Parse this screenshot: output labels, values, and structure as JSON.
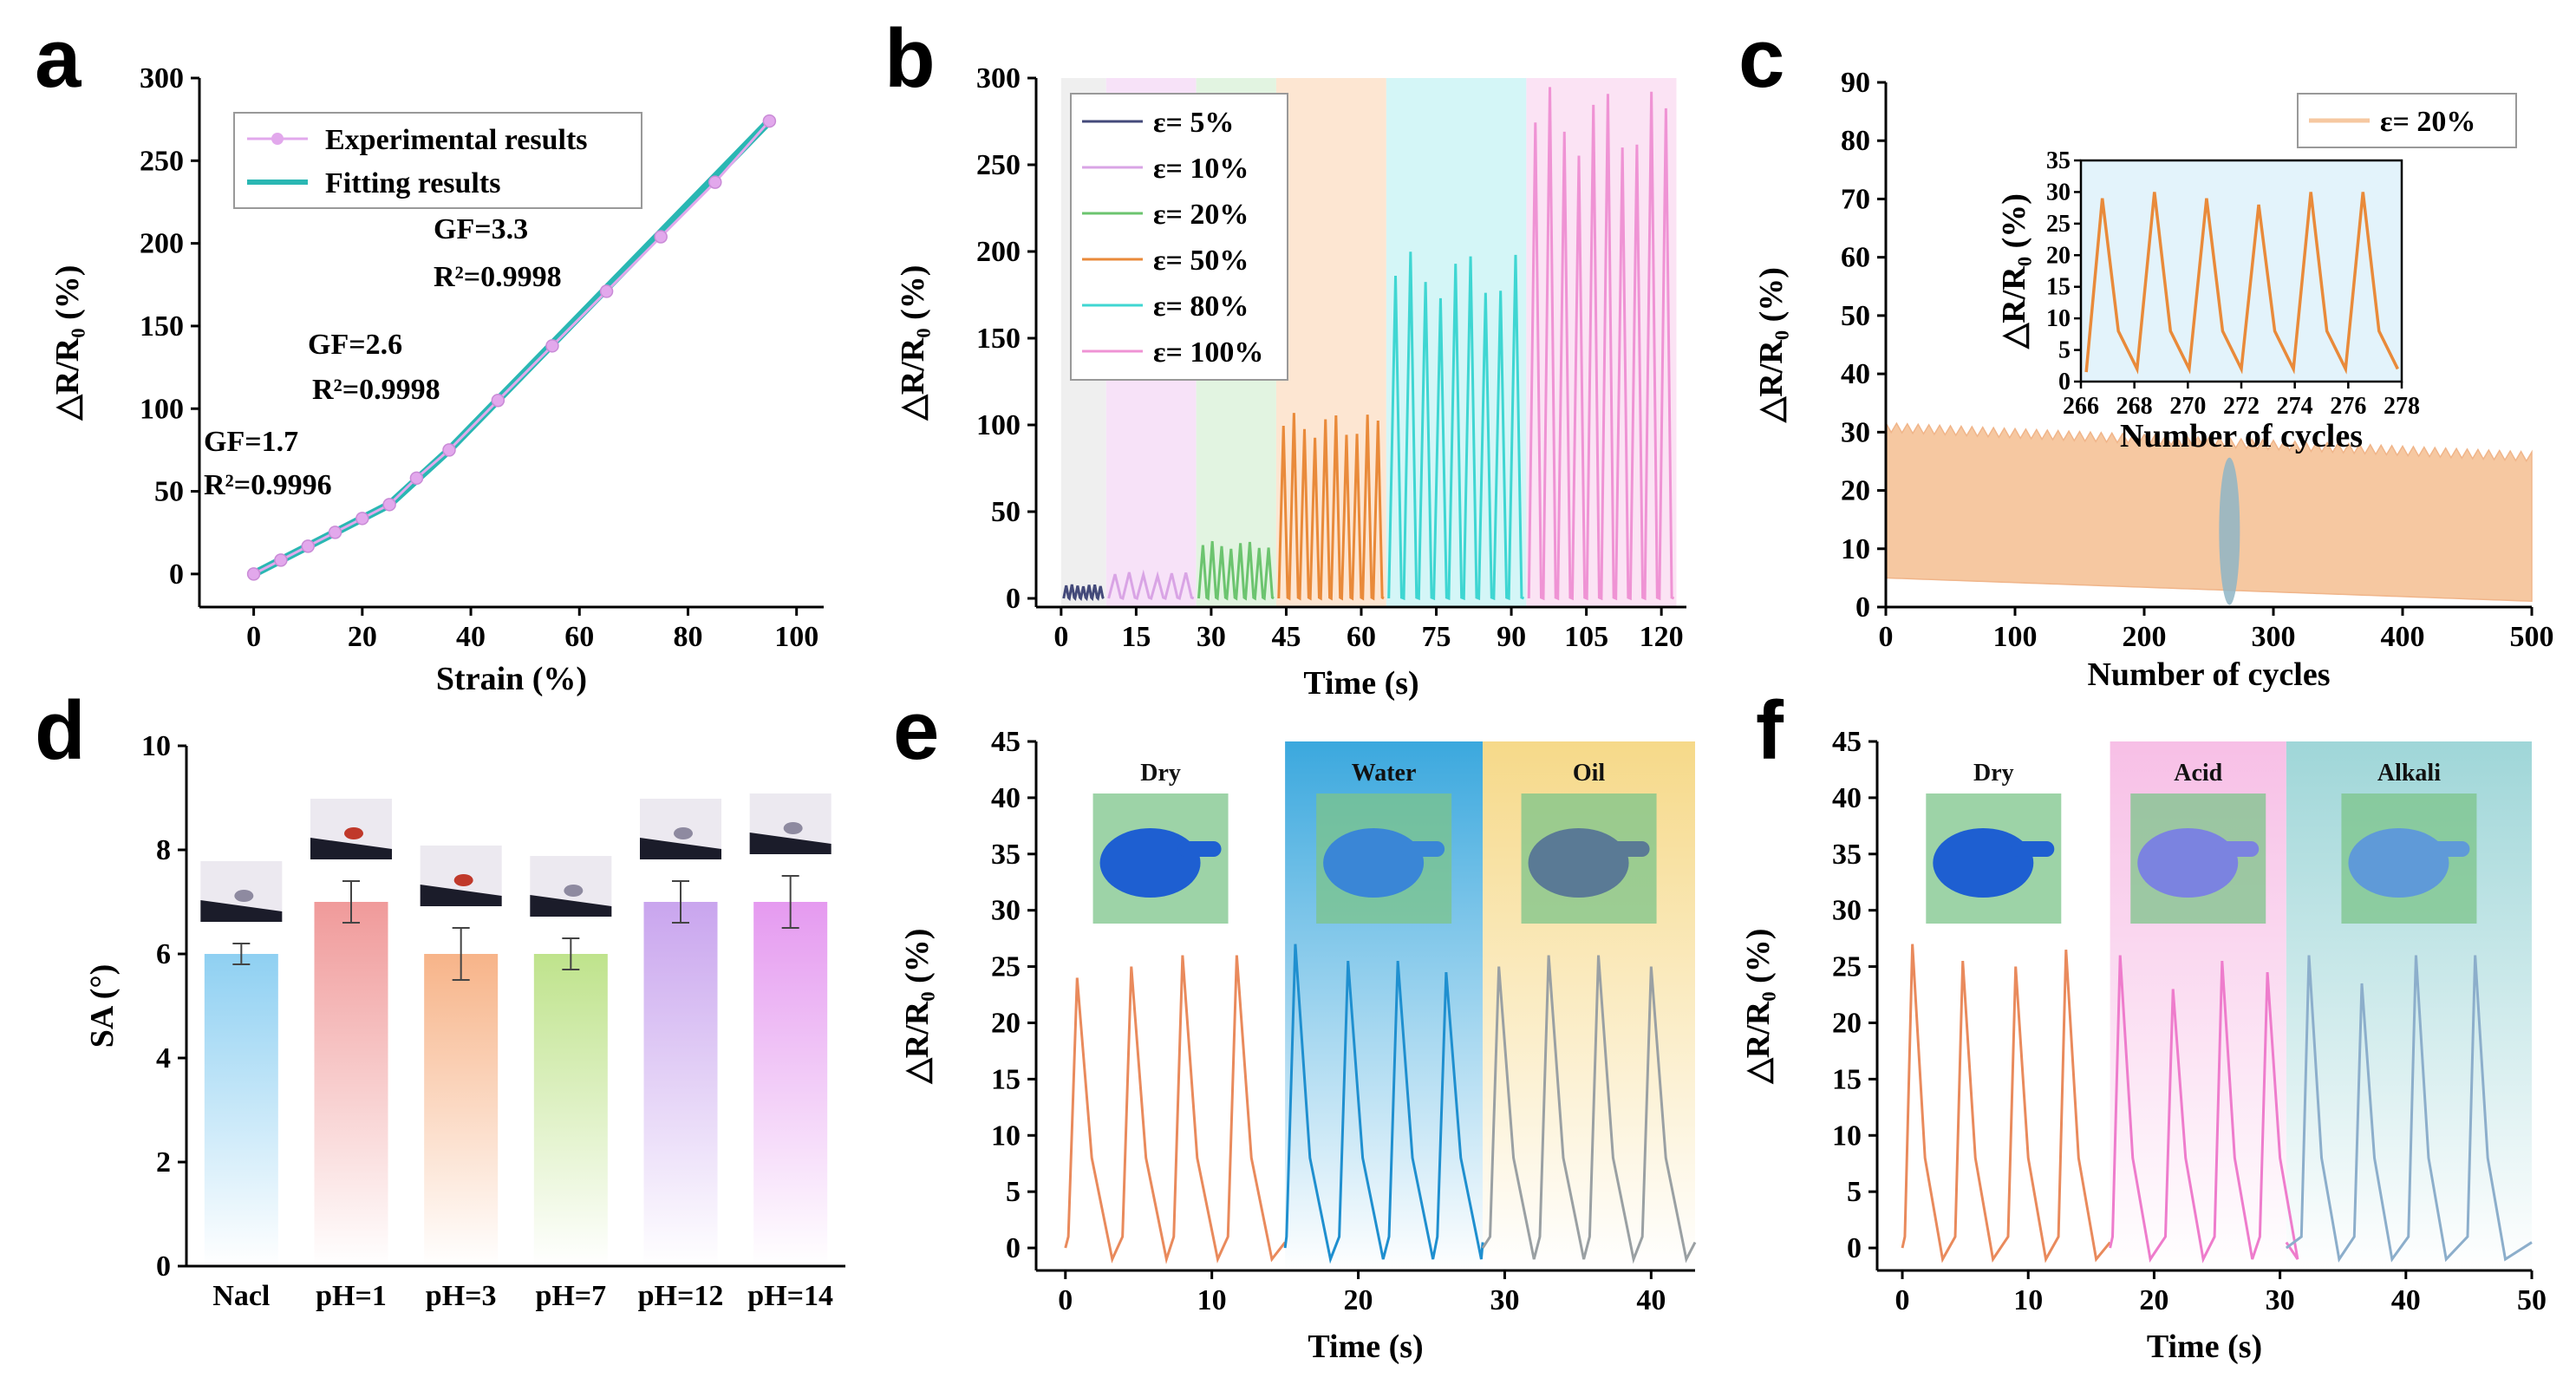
{
  "figure_letters": [
    "a",
    "b",
    "c",
    "d",
    "e",
    "f"
  ],
  "colors": {
    "exp": "#e2a8ec",
    "fit": "#2ab7b3",
    "orange": "#e98a3a",
    "dry_bg": "#ffffff",
    "water_bg": "#3ba8de",
    "oil_bg": "#f6d989",
    "acid_bg": "#f7bfe6",
    "alkali_bg": "#9fd6d8"
  },
  "chart_data": [
    {
      "id": "a",
      "type": "line",
      "xlabel": "Strain (%)",
      "ylabel": "△R/R₀ (%)",
      "xlim": [
        -10,
        105
      ],
      "ylim": [
        -20,
        300
      ],
      "xticks": [
        0,
        20,
        40,
        60,
        80,
        100
      ],
      "yticks": [
        0,
        50,
        100,
        150,
        200,
        250,
        300
      ],
      "series": [
        {
          "name": "Experimental results",
          "x": [
            0,
            5,
            10,
            15,
            20,
            25,
            30,
            36,
            45,
            55,
            65,
            75,
            85,
            95
          ],
          "values": [
            0,
            8.4,
            16.8,
            25.2,
            33.6,
            42,
            58,
            75,
            105,
            138,
            171,
            204,
            237,
            274
          ]
        },
        {
          "name": "Fitting results",
          "x": [
            0,
            25,
            36,
            95
          ],
          "values": [
            0,
            42,
            75,
            274
          ]
        }
      ],
      "annotations": [
        {
          "label": "GF=1.7",
          "r2": "R²=0.9996"
        },
        {
          "label": "GF=2.6",
          "r2": "R²=0.9998"
        },
        {
          "label": "GF=3.3",
          "r2": "R²=0.9998"
        }
      ]
    },
    {
      "id": "b",
      "type": "line",
      "xlabel": "Time (s)",
      "ylabel": "△R/R₀ (%)",
      "xlim": [
        -5,
        125
      ],
      "ylim": [
        -5,
        300
      ],
      "xticks": [
        0,
        15,
        30,
        45,
        60,
        75,
        90,
        105,
        120
      ],
      "yticks": [
        0,
        50,
        100,
        150,
        200,
        250,
        300
      ],
      "series": [
        {
          "name": "ε= 5%",
          "start": 0,
          "end": 9,
          "peak": 8,
          "cycles": 7,
          "color": "#444a7a",
          "bg": "#efefef"
        },
        {
          "name": "ε= 10%",
          "start": 9,
          "end": 27,
          "peak": 15,
          "cycles": 6,
          "color": "#d9a4e5",
          "bg": "#f7e2f8"
        },
        {
          "name": "ε= 20%",
          "start": 27,
          "end": 43,
          "peak": 33,
          "cycles": 8,
          "color": "#6cc46f",
          "bg": "#e2f4e1"
        },
        {
          "name": "ε= 50%",
          "start": 43,
          "end": 65,
          "peak": 107,
          "cycles": 10,
          "color": "#e98a3a",
          "bg": "#fde6d2"
        },
        {
          "name": "ε= 80%",
          "start": 65,
          "end": 93,
          "peak": 200,
          "cycles": 9,
          "color": "#3fd6d2",
          "bg": "#d4f6f7"
        },
        {
          "name": "ε= 100%",
          "start": 93,
          "end": 123,
          "peak": 295,
          "cycles": 10,
          "color": "#ef93d4",
          "bg": "#fbe3f4"
        }
      ]
    },
    {
      "id": "c",
      "type": "area",
      "xlabel": "Number of cycles",
      "ylabel": "△R/R₀ (%)",
      "xlim": [
        0,
        500
      ],
      "ylim": [
        0,
        90
      ],
      "xticks": [
        0,
        100,
        200,
        300,
        400,
        500
      ],
      "yticks": [
        0,
        10,
        20,
        30,
        40,
        50,
        60,
        70,
        80,
        90
      ],
      "series": [
        {
          "name": "ε= 20%",
          "x": [
            0,
            500
          ],
          "upper": [
            31,
            26
          ],
          "lower": [
            5,
            1
          ]
        }
      ],
      "inset": {
        "xlabel": "Number of cycles",
        "ylabel": "△R/R₀ (%)",
        "xlim": [
          266,
          278
        ],
        "ylim": [
          0,
          35
        ],
        "xticks": [
          266,
          268,
          270,
          272,
          274,
          276,
          278
        ],
        "yticks": [
          0,
          5,
          10,
          15,
          20,
          25,
          30,
          35
        ],
        "peaks": [
          29,
          30,
          29,
          28,
          30,
          30
        ]
      }
    },
    {
      "id": "d",
      "type": "bar",
      "xlabel": "",
      "ylabel": "SA (°)",
      "ylim": [
        0,
        10
      ],
      "yticks": [
        0,
        2,
        4,
        6,
        8,
        10
      ],
      "categories": [
        "Nacl",
        "pH=1",
        "pH=3",
        "pH=7",
        "pH=12",
        "pH=14"
      ],
      "values": [
        6,
        7,
        6,
        6,
        7,
        7
      ],
      "errors": [
        0.2,
        0.4,
        0.5,
        0.3,
        0.4,
        0.5
      ],
      "bar_colors": [
        "#8fd0f2",
        "#f09a9a",
        "#f7b489",
        "#bfe38c",
        "#c9a5ee",
        "#e59af0"
      ]
    },
    {
      "id": "e",
      "type": "line",
      "xlabel": "Time (s)",
      "ylabel": "△R/R₀ (%)",
      "xlim": [
        -2,
        43
      ],
      "ylim": [
        -2,
        45
      ],
      "xticks": [
        0,
        10,
        20,
        30,
        40
      ],
      "yticks": [
        0,
        5,
        10,
        15,
        20,
        25,
        30,
        35,
        40,
        45
      ],
      "conditions": [
        {
          "label": "Dry",
          "start": -2,
          "end": 15,
          "color": "#e98a5c"
        },
        {
          "label": "Water",
          "start": 15,
          "end": 28.5,
          "color": "#1f8fcf"
        },
        {
          "label": "Oil",
          "start": 28.5,
          "end": 43,
          "color": "#9aa0a3"
        }
      ],
      "peaks": [
        [
          0.8,
          24
        ],
        [
          4.5,
          25
        ],
        [
          8,
          26
        ],
        [
          11.7,
          26
        ],
        [
          15.7,
          27
        ],
        [
          19.3,
          25.5
        ],
        [
          22.7,
          25.5
        ],
        [
          26,
          24.5
        ],
        [
          29.6,
          25
        ],
        [
          33,
          26
        ],
        [
          36.4,
          26
        ],
        [
          40,
          25
        ]
      ]
    },
    {
      "id": "f",
      "type": "line",
      "xlabel": "Time (s)",
      "ylabel": "△R/R₀ (%)",
      "xlim": [
        -2,
        50
      ],
      "ylim": [
        -2,
        45
      ],
      "xticks": [
        0,
        10,
        20,
        30,
        40,
        50
      ],
      "yticks": [
        0,
        5,
        10,
        15,
        20,
        25,
        30,
        35,
        40,
        45
      ],
      "conditions": [
        {
          "label": "Dry",
          "start": -2,
          "end": 16.5,
          "color": "#e98a5c"
        },
        {
          "label": "Acid",
          "start": 16.5,
          "end": 30.5,
          "color": "#ee7ccc"
        },
        {
          "label": "Alkali",
          "start": 30.5,
          "end": 50,
          "color": "#8caecb"
        }
      ],
      "peaks": [
        [
          0.8,
          27
        ],
        [
          4.8,
          25.5
        ],
        [
          9,
          25
        ],
        [
          13,
          26.5
        ],
        [
          17.3,
          26
        ],
        [
          21.5,
          23
        ],
        [
          25.4,
          25.5
        ],
        [
          29,
          24.5
        ],
        [
          32.3,
          26
        ],
        [
          36.5,
          23.5
        ],
        [
          40.8,
          26
        ],
        [
          45.5,
          26
        ]
      ]
    }
  ]
}
